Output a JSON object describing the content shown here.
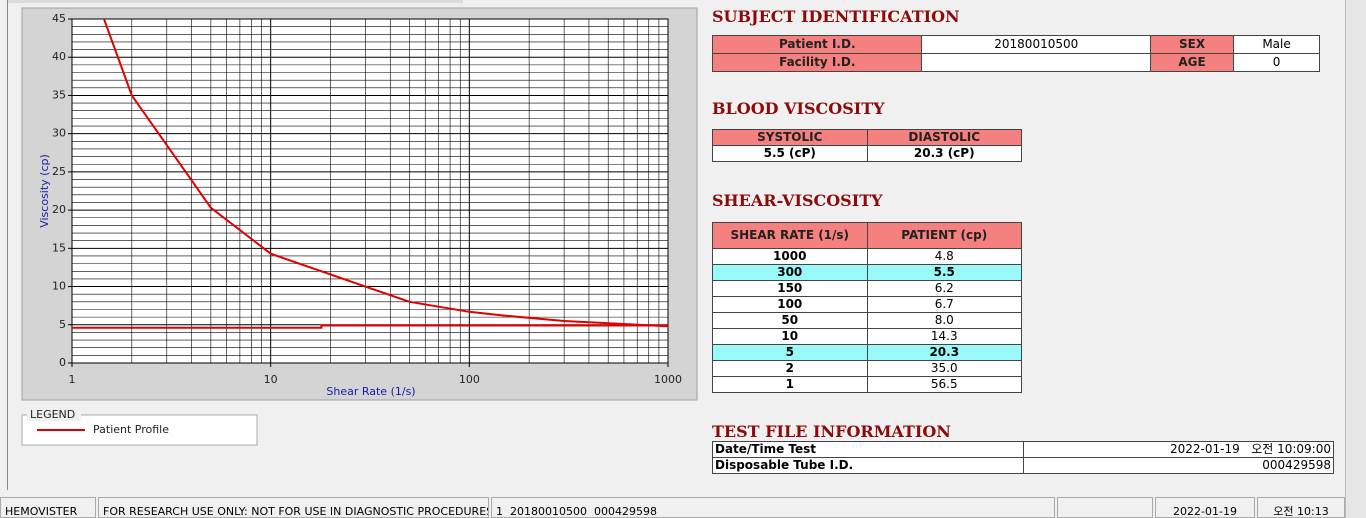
{
  "chart_data": {
    "type": "line",
    "xlabel": "Shear Rate (1/s)",
    "ylabel": "Viscosity (cp)",
    "xlog": true,
    "grid": true,
    "minor_grid": true,
    "xlim": [
      1,
      1000
    ],
    "xticks": [
      1,
      10,
      100,
      1000
    ],
    "ylim": [
      0,
      45
    ],
    "yticks": [
      0,
      5,
      10,
      15,
      20,
      25,
      30,
      35,
      40,
      45
    ],
    "legend_title": "LEGEND",
    "series": [
      {
        "name": "Patient Profile",
        "color": "#e00000",
        "x": [
          1,
          2,
          5,
          10,
          50,
          100,
          150,
          300,
          1000
        ],
        "values": [
          56.5,
          35.0,
          20.3,
          14.3,
          8.0,
          6.7,
          6.2,
          5.5,
          4.8
        ]
      },
      {
        "color": "#e00000",
        "x": [
          1,
          18,
          18,
          1000
        ],
        "values": [
          4.6,
          4.6,
          4.9,
          4.9
        ]
      }
    ]
  },
  "subject_identification": {
    "title": "SUBJECT IDENTIFICATION",
    "rows": [
      [
        "Patient I.D.",
        "20180010500",
        "SEX",
        "Male"
      ],
      [
        "Facility I.D.",
        null,
        "AGE",
        "0"
      ]
    ]
  },
  "blood_viscosity": {
    "title": "BLOOD VISCOSITY",
    "headers": [
      "SYSTOLIC",
      "DIASTOLIC"
    ],
    "values": [
      "5.5 (cP)",
      "20.3 (cP)"
    ]
  },
  "shear_viscosity": {
    "title": "SHEAR-VISCOSITY",
    "headers": [
      "SHEAR RATE (1/s)",
      "PATIENT (cp)"
    ],
    "rows": [
      {
        "cells": [
          "1000",
          "4.8"
        ],
        "highlight": false
      },
      {
        "cells": [
          "300",
          "5.5"
        ],
        "highlight": true
      },
      {
        "cells": [
          "150",
          "6.2"
        ],
        "highlight": false
      },
      {
        "cells": [
          "100",
          "6.7"
        ],
        "highlight": false
      },
      {
        "cells": [
          "50",
          "8.0"
        ],
        "highlight": false
      },
      {
        "cells": [
          "10",
          "14.3"
        ],
        "highlight": false
      },
      {
        "cells": [
          "5",
          "20.3"
        ],
        "highlight": true
      },
      {
        "cells": [
          "2",
          "35.0"
        ],
        "highlight": false
      },
      {
        "cells": [
          "1",
          "56.5"
        ],
        "highlight": false
      }
    ]
  },
  "test_file": {
    "title": "TEST FILE INFORMATION",
    "rows": [
      [
        "Date/Time Test",
        "2022-01-19   오전 10:09:00"
      ],
      [
        "Disposable Tube I.D.",
        "000429598"
      ]
    ]
  },
  "status_bar": {
    "product": "HEMOVISTER",
    "notice": "FOR RESEARCH USE ONLY: NOT FOR USE IN DIAGNOSTIC PROCEDURES",
    "file": "1  20180010500  000429598",
    "date": "2022-01-19",
    "time": "오전 10:13"
  }
}
